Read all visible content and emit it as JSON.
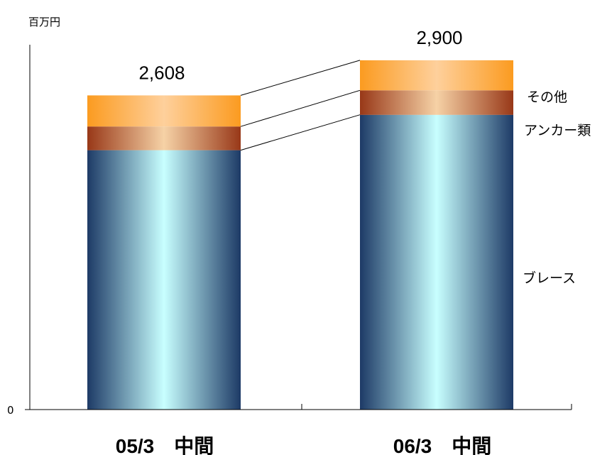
{
  "unit_label": "百万円",
  "zero_label": "0",
  "colors": {
    "brace_dark": "#1d3a66",
    "brace_light": "#c8ffff",
    "anchor_dark": "#983818",
    "anchor_light": "#f6d2a6",
    "other_dark": "#fb9b20",
    "other_light": "#fed09c",
    "axis": "#000000",
    "connector": "#000000"
  },
  "chart_data": {
    "type": "bar",
    "stacked": true,
    "categories": [
      "05/3　中間",
      "06/3　中間"
    ],
    "totals": [
      2608,
      2900
    ],
    "total_labels": [
      "2,608",
      "2,900"
    ],
    "series": [
      {
        "name": "ブレース",
        "values": [
          2153,
          2447
        ]
      },
      {
        "name": "アンカー類",
        "values": [
          197,
          203
        ]
      },
      {
        "name": "その他",
        "values": [
          258,
          250
        ]
      }
    ],
    "ylim": [
      0,
      3400
    ],
    "xlabel": "",
    "ylabel": "百万円",
    "grid": false,
    "legend": "labels beside right bar"
  }
}
